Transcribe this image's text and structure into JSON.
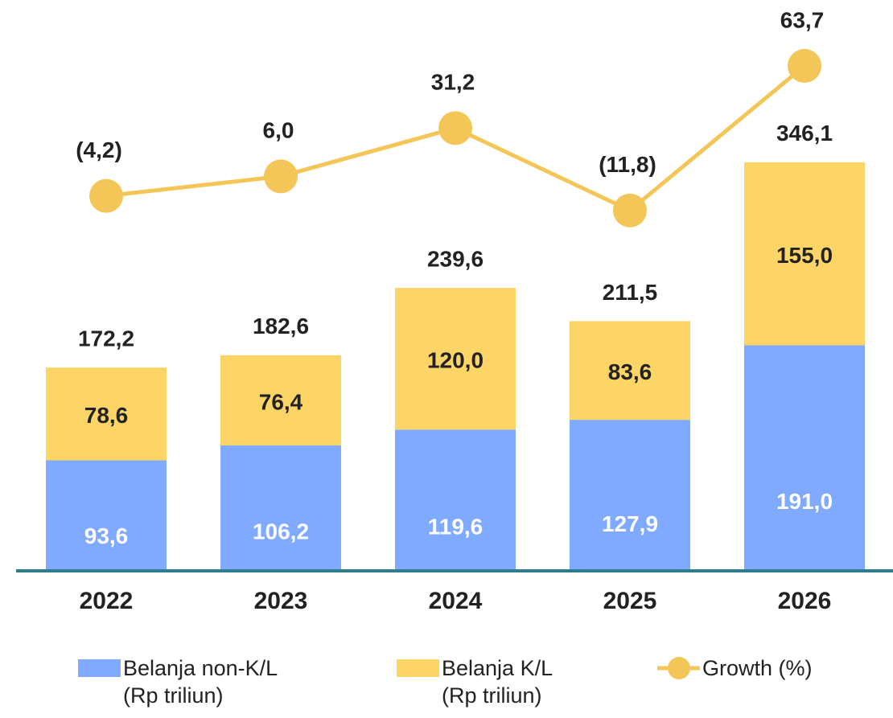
{
  "chart_data": {
    "type": "bar",
    "stacked": true,
    "categories": [
      "2022",
      "2023",
      "2024",
      "2025",
      "2026"
    ],
    "series": [
      {
        "name": "Belanja non-K/L (Rp triliun)",
        "color": "#7faaff",
        "values": [
          93.6,
          106.2,
          119.6,
          127.9,
          191.0
        ],
        "value_labels": [
          "93,6",
          "106,2",
          "119,6",
          "127,9",
          "191,0"
        ]
      },
      {
        "name": "Belanja K/L (Rp triliun)",
        "color": "#fdd567",
        "values": [
          78.6,
          76.4,
          120.0,
          83.6,
          155.0
        ],
        "value_labels": [
          "78,6",
          "76,4",
          "120,0",
          "83,6",
          "155,0"
        ]
      },
      {
        "name": "Growth (%)",
        "type": "line",
        "axis": "y2",
        "color": "#f4c658",
        "values": [
          -4.2,
          6.0,
          31.2,
          -11.8,
          63.7
        ],
        "value_labels": [
          "(4,2)",
          "6,0",
          "31,2",
          "(11,8)",
          "63,7"
        ]
      }
    ],
    "totals": [
      172.2,
      182.6,
      239.6,
      211.5,
      346.1
    ],
    "total_labels": [
      "172,2",
      "182,6",
      "239,6",
      "211,5",
      "346,1"
    ],
    "ylim": [
      0,
      480
    ],
    "y2lim": [
      -200,
      96
    ],
    "axis_color": "#2e7d8c"
  }
}
